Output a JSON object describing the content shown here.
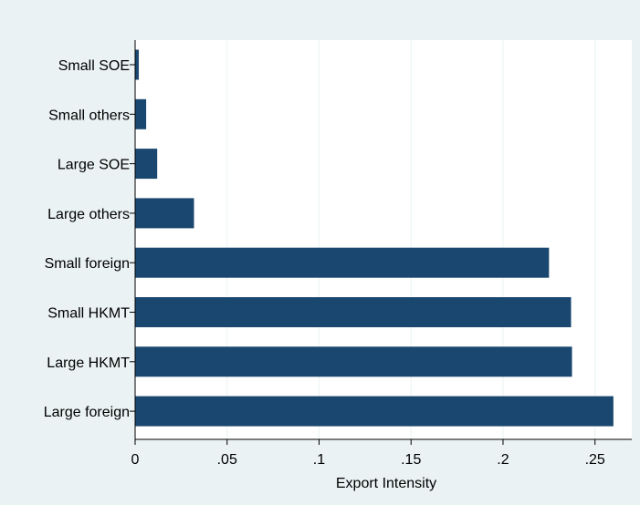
{
  "chart_data": {
    "type": "bar",
    "orientation": "horizontal",
    "categories": [
      "Small SOE",
      "Small others",
      "Large SOE",
      "Large others",
      "Small foreign",
      "Small HKMT",
      "Large HKMT",
      "Large foreign"
    ],
    "values": [
      0.002,
      0.006,
      0.012,
      0.032,
      0.225,
      0.237,
      0.2375,
      0.26
    ],
    "xlabel": "Export Intensity",
    "ylabel": "",
    "title": "",
    "xlim": [
      0,
      0.27
    ],
    "xticks": [
      0,
      0.05,
      0.1,
      0.15,
      0.2,
      0.25
    ],
    "xtick_labels": [
      "0",
      ".05",
      ".1",
      ".15",
      ".2",
      ".25"
    ],
    "grid": "vertical",
    "colors": {
      "bar": "#1a476f",
      "outer_background": "#eaf2f3",
      "plot_background": "#ffffff",
      "gridline": "#eaf2f3",
      "axis": "#000000"
    }
  }
}
